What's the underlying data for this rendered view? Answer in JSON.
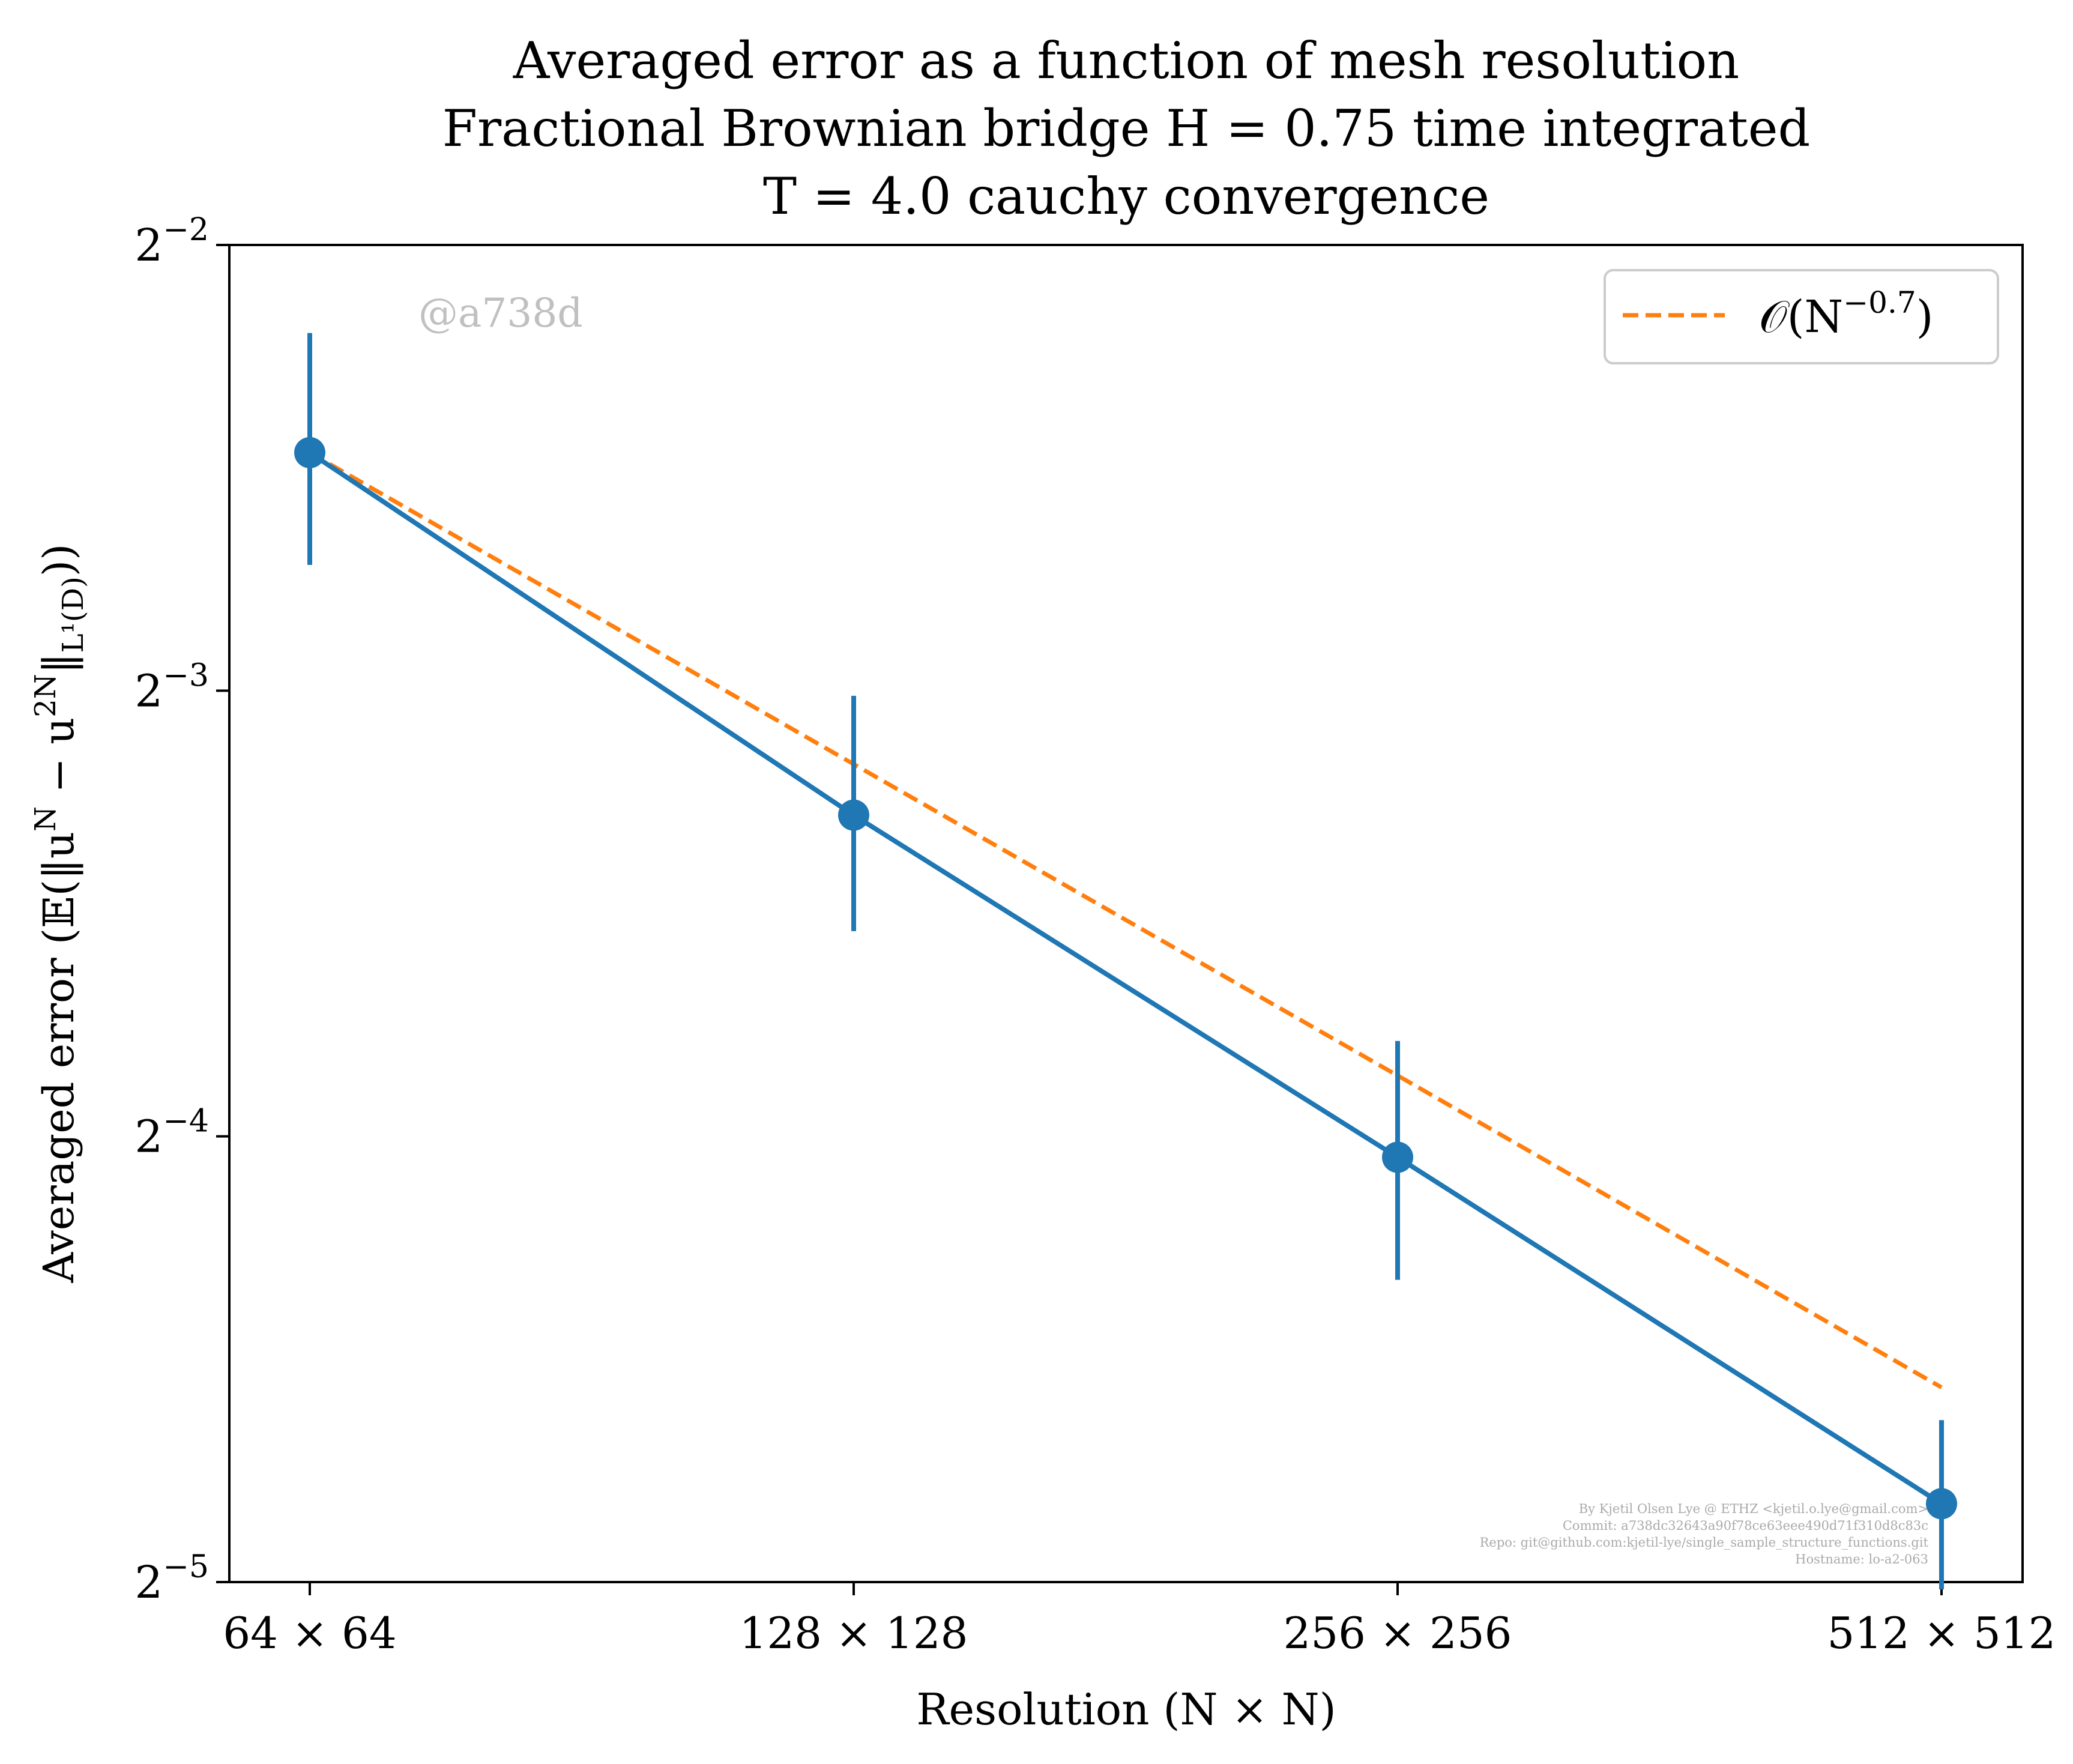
{
  "chart_data": {
    "type": "line",
    "title_lines": [
      "Averaged error as a function of mesh resolution",
      "Fractional Brownian bridge H = 0.75 time integrated",
      "T = 4.0 cauchy convergence"
    ],
    "xlabel": "Resolution (N × N)",
    "ylabel": "Averaged error (𝔼(‖u^N − u^{2N}‖_{L¹(D)}))",
    "ylabel_main": "Averaged error (𝔼(‖u",
    "ylabel_sup1": "N",
    "ylabel_mid": " − u",
    "ylabel_sup2": "2N",
    "ylabel_mid2": "‖",
    "ylabel_sub": "L¹(D)",
    "ylabel_end": "))",
    "x_scale": "log2",
    "y_scale": "log2",
    "x": [
      64,
      128,
      256,
      512
    ],
    "x_tick_labels": [
      "64 × 64",
      "128 × 128",
      "256 × 256",
      "512 × 512"
    ],
    "ylim": [
      0.03125,
      0.25
    ],
    "y_ticks": [
      {
        "value": 0.25,
        "base": "2",
        "exp": "−2"
      },
      {
        "value": 0.125,
        "base": "2",
        "exp": "−3"
      },
      {
        "value": 0.0625,
        "base": "2",
        "exp": "−4"
      },
      {
        "value": 0.03125,
        "base": "2",
        "exp": "−5"
      }
    ],
    "series": [
      {
        "kind": "errorbar",
        "color": "#1f77b4",
        "values": [
          0.181,
          0.103,
          0.0605,
          0.0353
        ],
        "err_upper": [
          0.218,
          0.124,
          0.0725,
          0.0402
        ],
        "err_lower": [
          0.152,
          0.086,
          0.05,
          0.0309
        ]
      },
      {
        "name": "𝒪(N^{−0.7})",
        "name_main": "𝒪(N",
        "name_sup": "−0.7",
        "name_end": ")",
        "kind": "fit",
        "color": "#ff7f0e",
        "dash": "dashed",
        "values": [
          0.181,
          0.1115,
          0.0687,
          0.0423
        ]
      }
    ],
    "legend_position": "top-right",
    "grid": false,
    "watermark": "@a738d",
    "footer_lines": [
      "By Kjetil Olsen Lye @ ETHZ <kjetil.o.lye@gmail.com>",
      "Commit: a738dc32643a90f78ce63eee490d71f310d8c83c",
      "Repo: git@github.com:kjetil-lye/single_sample_structure_functions.git",
      "Hostname: lo-a2-063"
    ]
  }
}
